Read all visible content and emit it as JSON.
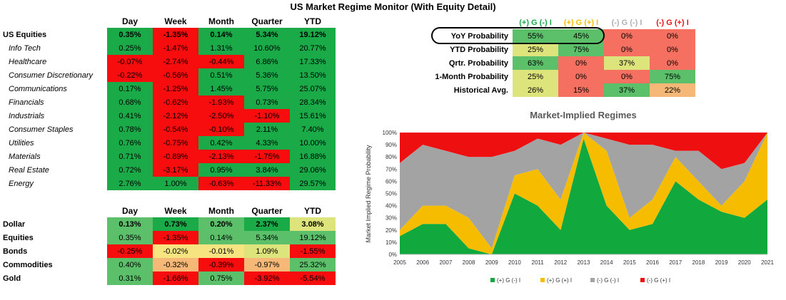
{
  "title": "US Market Regime Monitor (With Equity Detail)",
  "colors": {
    "dark_green": "#1aaa48",
    "light_green": "#5cbf6a",
    "yellow_green": "#dee47c",
    "yellow": "#f5e480",
    "orange": "#f5b877",
    "salmon": "#f57060",
    "red": "#f70d0d",
    "chart_green": "#11a83e",
    "chart_yellow": "#f6bd00",
    "chart_gray": "#a3a3a3",
    "chart_red": "#ee1010"
  },
  "equity_table": {
    "headers": [
      "Day",
      "Week",
      "Month",
      "Quarter",
      "YTD"
    ],
    "rows": [
      {
        "label": "US Equities",
        "style": "bold",
        "values": [
          "0.35%",
          "-1.35%",
          "0.14%",
          "5.34%",
          "19.12%"
        ],
        "colors": [
          "dark_green",
          "red",
          "dark_green",
          "dark_green",
          "dark_green"
        ]
      },
      {
        "label": "Info Tech",
        "style": "italic",
        "values": [
          "0.25%",
          "-1.47%",
          "1.31%",
          "10.60%",
          "20.77%"
        ],
        "colors": [
          "dark_green",
          "red",
          "dark_green",
          "dark_green",
          "dark_green"
        ]
      },
      {
        "label": "Healthcare",
        "style": "italic",
        "values": [
          "-0.07%",
          "-2.74%",
          "-0.44%",
          "6.86%",
          "17.33%"
        ],
        "colors": [
          "red",
          "red",
          "red",
          "dark_green",
          "dark_green"
        ]
      },
      {
        "label": "Consumer Discretionary",
        "style": "italic",
        "values": [
          "-0.22%",
          "-0.56%",
          "0.51%",
          "5.36%",
          "13.50%"
        ],
        "colors": [
          "red",
          "red",
          "dark_green",
          "dark_green",
          "dark_green"
        ]
      },
      {
        "label": "Communications",
        "style": "italic",
        "values": [
          "0.17%",
          "-1.25%",
          "1.45%",
          "5.75%",
          "25.07%"
        ],
        "colors": [
          "dark_green",
          "red",
          "dark_green",
          "dark_green",
          "dark_green"
        ]
      },
      {
        "label": "Financials",
        "style": "italic",
        "values": [
          "0.68%",
          "-0.62%",
          "-1.93%",
          "0.73%",
          "28.34%"
        ],
        "colors": [
          "dark_green",
          "red",
          "red",
          "dark_green",
          "dark_green"
        ]
      },
      {
        "label": "Industrials",
        "style": "italic",
        "values": [
          "0.41%",
          "-2.12%",
          "-2.50%",
          "-1.10%",
          "15.61%"
        ],
        "colors": [
          "dark_green",
          "red",
          "red",
          "red",
          "dark_green"
        ]
      },
      {
        "label": "Consumer Staples",
        "style": "italic",
        "values": [
          "0.78%",
          "-0.54%",
          "-0.10%",
          "2.11%",
          "7.40%"
        ],
        "colors": [
          "dark_green",
          "red",
          "red",
          "dark_green",
          "dark_green"
        ]
      },
      {
        "label": "Utilities",
        "style": "italic",
        "values": [
          "0.76%",
          "-0.75%",
          "0.42%",
          "4.33%",
          "10.00%"
        ],
        "colors": [
          "dark_green",
          "red",
          "dark_green",
          "dark_green",
          "dark_green"
        ]
      },
      {
        "label": "Materials",
        "style": "italic",
        "values": [
          "0.71%",
          "-0.89%",
          "-2.13%",
          "-1.75%",
          "16.88%"
        ],
        "colors": [
          "dark_green",
          "red",
          "red",
          "red",
          "dark_green"
        ]
      },
      {
        "label": "Real Estate",
        "style": "italic",
        "values": [
          "0.72%",
          "-3.17%",
          "0.95%",
          "3.84%",
          "29.06%"
        ],
        "colors": [
          "dark_green",
          "red",
          "dark_green",
          "dark_green",
          "dark_green"
        ]
      },
      {
        "label": "Energy",
        "style": "italic",
        "values": [
          "2.76%",
          "1.00%",
          "-0.63%",
          "-11.33%",
          "29.57%"
        ],
        "colors": [
          "dark_green",
          "dark_green",
          "red",
          "red",
          "dark_green"
        ]
      }
    ]
  },
  "asset_table": {
    "headers": [
      "Day",
      "Week",
      "Month",
      "Quarter",
      "YTD"
    ],
    "rows": [
      {
        "label": "Dollar",
        "bold_values": true,
        "values": [
          "0.13%",
          "0.73%",
          "0.20%",
          "2.37%",
          "3.08%"
        ],
        "colors": [
          "light_green",
          "dark_green",
          "light_green",
          "dark_green",
          "yellow_green"
        ]
      },
      {
        "label": "Equities",
        "bold_values": false,
        "values": [
          "0.35%",
          "-1.35%",
          "0.14%",
          "5.34%",
          "19.12%"
        ],
        "colors": [
          "light_green",
          "red",
          "light_green",
          "light_green",
          "light_green"
        ]
      },
      {
        "label": "Bonds",
        "bold_values": false,
        "values": [
          "-0.25%",
          "-0.02%",
          "-0.01%",
          "1.09%",
          "-1.55%"
        ],
        "colors": [
          "red",
          "yellow",
          "yellow",
          "yellow_green",
          "red"
        ]
      },
      {
        "label": "Commodities",
        "bold_values": false,
        "values": [
          "0.40%",
          "-0.32%",
          "-0.39%",
          "-0.97%",
          "25.32%"
        ],
        "colors": [
          "light_green",
          "orange",
          "red",
          "orange",
          "light_green"
        ]
      },
      {
        "label": "Gold",
        "bold_values": false,
        "values": [
          "0.31%",
          "-1.66%",
          "0.75%",
          "-3.92%",
          "-5.54%"
        ],
        "colors": [
          "light_green",
          "red",
          "light_green",
          "red",
          "red"
        ]
      }
    ]
  },
  "prob_table": {
    "headers": [
      {
        "text": "(+) G (-) I",
        "color": "#1aaa48"
      },
      {
        "text": "(+) G (+) I",
        "color": "#f6bd00"
      },
      {
        "text": "(-) G (-) I",
        "color": "#b0b0b0"
      },
      {
        "text": "(-) G (+) I",
        "color": "#ee1010"
      }
    ],
    "rows": [
      {
        "label": "YoY Probability",
        "values": [
          "55%",
          "45%",
          "0%",
          "0%"
        ],
        "colors": [
          "light_green",
          "light_green",
          "salmon",
          "salmon"
        ]
      },
      {
        "label": "YTD Probability",
        "values": [
          "25%",
          "75%",
          "0%",
          "0%"
        ],
        "colors": [
          "yellow_green",
          "light_green",
          "salmon",
          "salmon"
        ]
      },
      {
        "label": "Qrtr. Probability",
        "values": [
          "63%",
          "0%",
          "37%",
          "0%"
        ],
        "colors": [
          "light_green",
          "salmon",
          "yellow_green",
          "salmon"
        ]
      },
      {
        "label": "1-Month Probability",
        "values": [
          "25%",
          "0%",
          "0%",
          "75%"
        ],
        "colors": [
          "yellow_green",
          "salmon",
          "salmon",
          "light_green"
        ]
      },
      {
        "label": "Historical Avg.",
        "values": [
          "26%",
          "15%",
          "37%",
          "22%"
        ],
        "colors": [
          "yellow_green",
          "salmon",
          "light_green",
          "orange"
        ]
      }
    ]
  },
  "chart_data": {
    "type": "area",
    "stacked": true,
    "title": "Market-Implied Regimes",
    "ylabel": "Market Implied Regime Probability",
    "xlabel": "",
    "ylim": [
      0,
      100
    ],
    "yticks": [
      "0%",
      "10%",
      "20%",
      "30%",
      "40%",
      "50%",
      "60%",
      "70%",
      "80%",
      "90%",
      "100%"
    ],
    "x": [
      "2005",
      "2006",
      "2007",
      "2008",
      "2009",
      "2010",
      "2011",
      "2012",
      "2013",
      "2014",
      "2015",
      "2016",
      "2017",
      "2018",
      "2019",
      "2020",
      "2021"
    ],
    "legend_position": "bottom",
    "series": [
      {
        "name": "(+) G (-) I",
        "color": "#11a83e",
        "values": [
          15,
          25,
          25,
          5,
          0,
          50,
          40,
          20,
          95,
          40,
          20,
          25,
          60,
          45,
          35,
          30,
          45
        ]
      },
      {
        "name": "(+) G (+) I",
        "color": "#f6bd00",
        "values": [
          5,
          15,
          15,
          25,
          5,
          15,
          30,
          25,
          5,
          45,
          10,
          20,
          20,
          15,
          5,
          30,
          55
        ]
      },
      {
        "name": "(-) G (-) I",
        "color": "#a3a3a3",
        "values": [
          55,
          50,
          45,
          50,
          75,
          20,
          25,
          45,
          0,
          10,
          60,
          45,
          5,
          25,
          30,
          15,
          0
        ]
      },
      {
        "name": "(-) G (+) I",
        "color": "#ee1010",
        "values": [
          25,
          10,
          15,
          20,
          20,
          15,
          5,
          10,
          0,
          5,
          10,
          10,
          15,
          15,
          30,
          25,
          0
        ]
      }
    ]
  }
}
